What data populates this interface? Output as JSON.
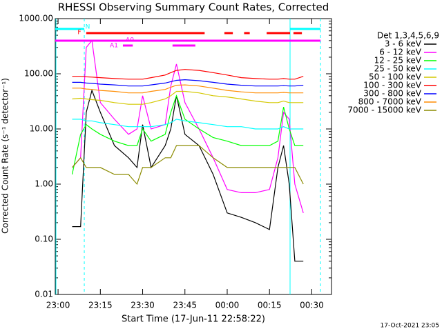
{
  "chart_data": {
    "type": "line",
    "title": "RHESSI Observing Summary Count Rates, Corrected",
    "xlabel": "Start Time (17-Jun-11 22:58:22)",
    "ylabel": "Corrected Count Rate (s⁻¹ detector⁻¹)",
    "legend_title": "Det 1,3,4,5,6,9",
    "footer": "17-Oct-2021 23:05",
    "log_y": true,
    "xlim": [
      -1,
      97
    ],
    "ylim": [
      0.01,
      1000
    ],
    "xticks": [
      {
        "value": 0,
        "label": "23:00"
      },
      {
        "value": 15,
        "label": "23:15"
      },
      {
        "value": 30,
        "label": "23:30"
      },
      {
        "value": 45,
        "label": "23:45"
      },
      {
        "value": 60,
        "label": "00:00"
      },
      {
        "value": 75,
        "label": "00:15"
      },
      {
        "value": 90,
        "label": "00:30"
      }
    ],
    "yticks": [
      {
        "value": 0.01,
        "label": "0.01"
      },
      {
        "value": 0.1,
        "label": "0.10"
      },
      {
        "value": 1,
        "label": "1.00"
      },
      {
        "value": 10,
        "label": "10.00"
      },
      {
        "value": 100,
        "label": "100.00"
      },
      {
        "value": 1000,
        "label": "1000.00"
      }
    ],
    "x": [
      5,
      8,
      10,
      12,
      15,
      20,
      25,
      28,
      30,
      33,
      38,
      40,
      42,
      45,
      50,
      55,
      60,
      65,
      70,
      75,
      78,
      80,
      82,
      84,
      87
    ],
    "series": [
      {
        "name": "3 - 6 keV",
        "color": "#000000",
        "values": [
          0.17,
          0.17,
          20,
          50,
          20,
          5,
          3,
          2,
          12,
          2,
          5,
          10,
          40,
          8,
          5,
          1.5,
          0.3,
          0.25,
          0.2,
          0.15,
          2,
          5,
          1,
          0.04,
          0.04
        ]
      },
      {
        "name": "6 - 12 keV",
        "color": "#ff00ff",
        "values": [
          2,
          3,
          300,
          400,
          30,
          15,
          8,
          10,
          40,
          10,
          12,
          60,
          150,
          30,
          10,
          3,
          0.8,
          0.7,
          0.7,
          0.8,
          3,
          20,
          15,
          1,
          0.3
        ]
      },
      {
        "name": "12 - 25 keV",
        "color": "#00ff00",
        "values": [
          1.5,
          8,
          12,
          10,
          8,
          6,
          5,
          5,
          10,
          6,
          8,
          20,
          40,
          15,
          10,
          7,
          6,
          5,
          5,
          5,
          6,
          25,
          10,
          5,
          5
        ]
      },
      {
        "name": "25 - 50 keV",
        "color": "#00ffff",
        "values": [
          15,
          15,
          14,
          14,
          13,
          12,
          11,
          11,
          11,
          11,
          12,
          13,
          15,
          14,
          13,
          12,
          11,
          11,
          10,
          10,
          10,
          11,
          10,
          10,
          10
        ]
      },
      {
        "name": "50 - 100 keV",
        "color": "#d4c800",
        "values": [
          35,
          36,
          35,
          34,
          33,
          30,
          28,
          28,
          28,
          30,
          35,
          40,
          48,
          48,
          45,
          40,
          38,
          35,
          32,
          30,
          30,
          32,
          30,
          30,
          30
        ]
      },
      {
        "name": "100 - 300 keV",
        "color": "#ff0000",
        "values": [
          90,
          90,
          88,
          87,
          85,
          82,
          80,
          80,
          80,
          85,
          95,
          105,
          115,
          120,
          115,
          105,
          95,
          85,
          82,
          80,
          80,
          82,
          80,
          80,
          90
        ]
      },
      {
        "name": "300 - 800 keV",
        "color": "#0000ff",
        "values": [
          70,
          70,
          68,
          67,
          65,
          63,
          60,
          60,
          60,
          63,
          68,
          72,
          76,
          78,
          75,
          70,
          65,
          62,
          60,
          60,
          60,
          61,
          60,
          60,
          62
        ]
      },
      {
        "name": "800 - 7000 keV",
        "color": "#ff8c00",
        "values": [
          55,
          55,
          53,
          52,
          50,
          48,
          45,
          45,
          45,
          48,
          52,
          57,
          62,
          63,
          60,
          55,
          50,
          47,
          45,
          45,
          45,
          46,
          45,
          45,
          45
        ]
      },
      {
        "name": "7000 - 15000 keV",
        "color": "#8b8b00",
        "values": [
          2,
          3,
          2,
          2,
          2,
          1.5,
          1.5,
          1,
          2,
          2,
          3,
          3,
          5,
          5,
          5,
          3,
          2,
          2,
          2,
          2,
          2,
          2,
          2,
          2,
          1
        ]
      }
    ],
    "flags": [
      {
        "label": "N",
        "color": "#00ffff",
        "segments": [
          [
            -1,
            9.3
          ],
          [
            82.3,
            93.1
          ]
        ]
      },
      {
        "label": "F",
        "color": "#ff0000",
        "segments": [
          [
            10,
            52
          ],
          [
            59,
            62
          ],
          [
            66,
            68
          ],
          [
            74,
            82.3
          ],
          [
            83.5,
            86.5
          ]
        ]
      },
      {
        "label": "A0",
        "color": "#ff00ff",
        "segments": [
          [
            -1,
            93.1
          ]
        ]
      },
      {
        "label": "A1",
        "color": "#ff00ff",
        "segments": [
          [
            23,
            26.5
          ],
          [
            40.6,
            48.7
          ]
        ]
      }
    ],
    "vlines": [
      {
        "value": -0.75,
        "style": "solid"
      },
      {
        "value": 9.3,
        "style": "dashed"
      },
      {
        "value": 82.3,
        "style": "solid"
      },
      {
        "value": 93.1,
        "style": "dashed"
      }
    ]
  }
}
